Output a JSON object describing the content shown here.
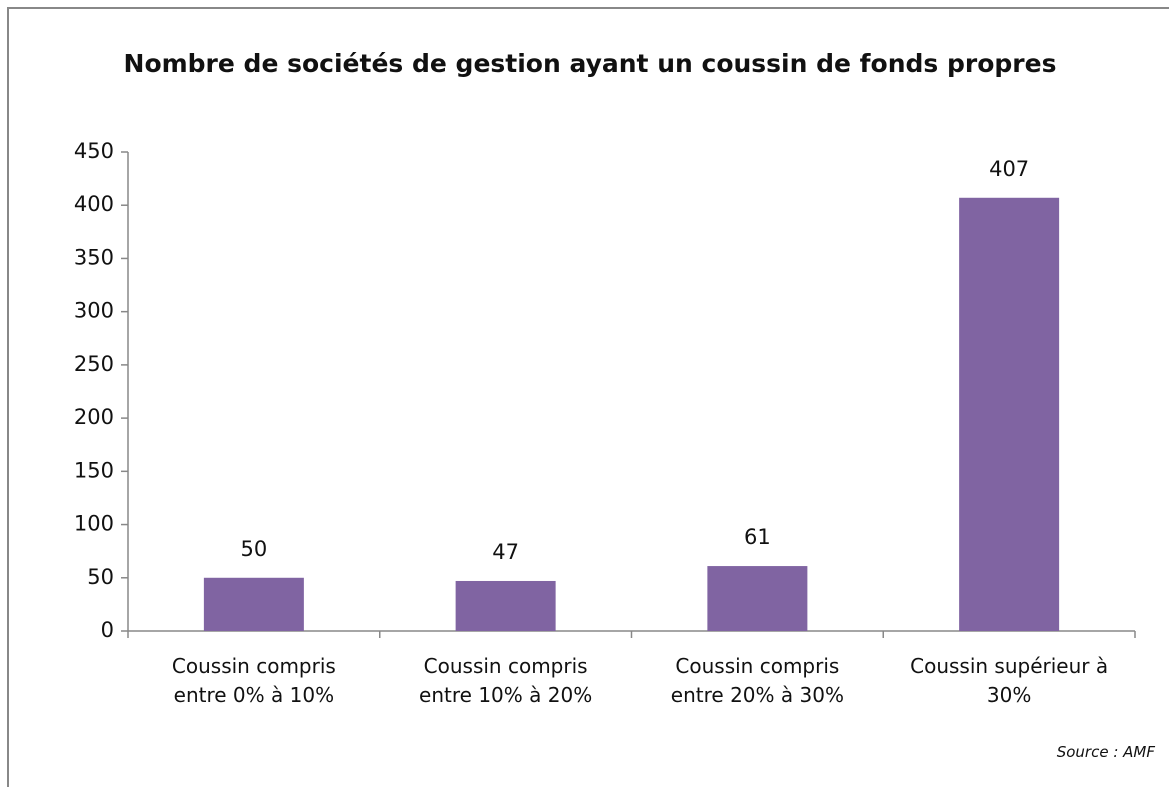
{
  "chart_data": {
    "type": "bar",
    "title": "Nombre de sociétés de gestion ayant un coussin de fonds propres",
    "categories": [
      "Coussin compris entre 0% à 10%",
      "Coussin compris entre 10% à 20%",
      "Coussin compris entre 20% à 30%",
      "Coussin supérieur à 30%"
    ],
    "values": [
      50,
      47,
      61,
      407
    ],
    "color": "#8064a2",
    "ylim": [
      0,
      450
    ],
    "yticks": [
      0,
      50,
      100,
      150,
      200,
      250,
      300,
      350,
      400,
      450
    ],
    "grid": false,
    "source": "Source : AMF"
  }
}
